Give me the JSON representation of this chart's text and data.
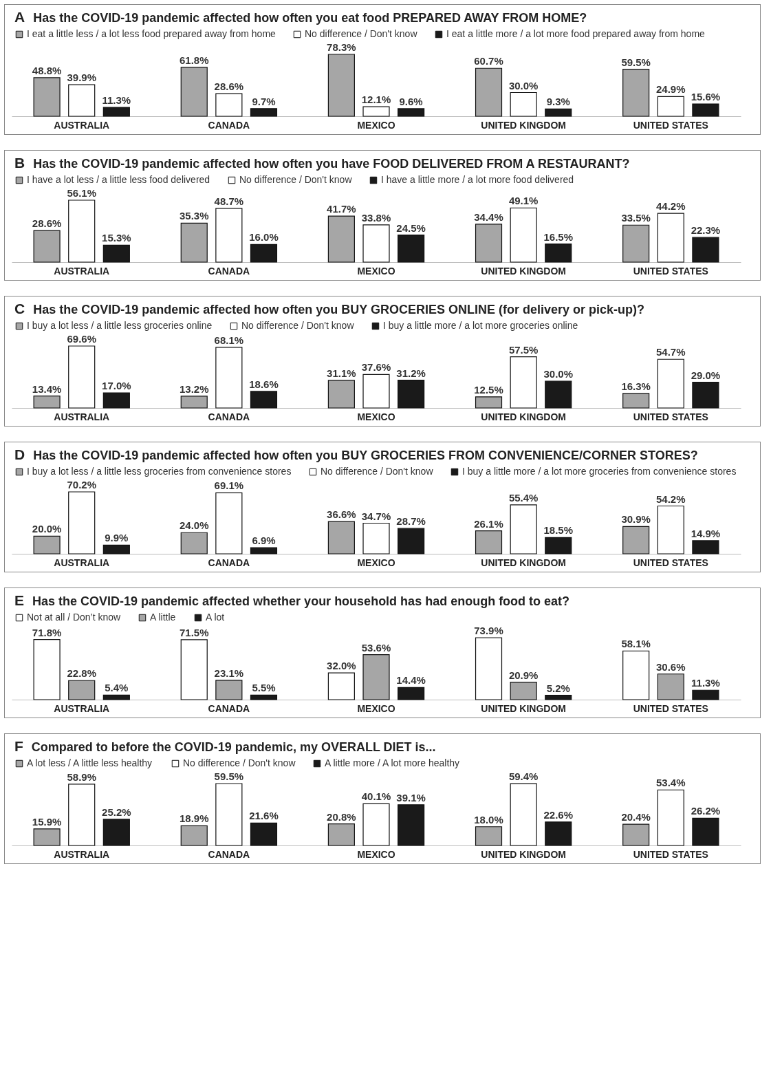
{
  "chart_data": [
    {
      "type": "bar",
      "title": "Has the COVID-19 pandemic affected how often you eat food PREPARED AWAY FROM HOME?",
      "annotations": [
        "A"
      ],
      "legend": "top",
      "categories": [
        "AUSTRALIA",
        "CANADA",
        "MEXICO",
        "UNITED KINGDOM",
        "UNITED STATES"
      ],
      "series": [
        {
          "name": "I eat a little less / a lot less food prepared away from home",
          "color": "#a6a6a6",
          "values": [
            48.8,
            61.8,
            78.3,
            60.7,
            59.5
          ],
          "value_labels": [
            "48.8%",
            "61.8%",
            "78.3%",
            "60.7%",
            "59.5%"
          ]
        },
        {
          "name": "No difference / Don't know",
          "color": "#ffffff",
          "values": [
            39.9,
            28.6,
            12.1,
            30.0,
            24.9
          ],
          "value_labels": [
            "39.9%",
            "28.6%",
            "12.1%",
            "30.0%",
            "24.9%"
          ]
        },
        {
          "name": "I eat a little more / a lot more food prepared away from home",
          "color": "#1a1a1a",
          "values": [
            11.3,
            9.7,
            9.6,
            9.3,
            15.6
          ],
          "value_labels": [
            "11.3%",
            "9.7%",
            "9.6%",
            "9.3%",
            "15.6%"
          ]
        }
      ]
    },
    {
      "type": "bar",
      "title": "Has the COVID-19 pandemic affected how often you have FOOD DELIVERED FROM A RESTAURANT?",
      "annotations": [
        "B"
      ],
      "legend": "top",
      "categories": [
        "AUSTRALIA",
        "CANADA",
        "MEXICO",
        "UNITED KINGDOM",
        "UNITED STATES"
      ],
      "series": [
        {
          "name": "I have a lot less / a little less food delivered",
          "color": "#a6a6a6",
          "values": [
            28.6,
            35.3,
            41.7,
            34.4,
            33.5
          ],
          "value_labels": [
            "28.6%",
            "35.3%",
            "41.7%",
            "34.4%",
            "33.5%"
          ]
        },
        {
          "name": "No difference / Don't know",
          "color": "#ffffff",
          "values": [
            56.1,
            48.7,
            33.8,
            49.1,
            44.2
          ],
          "value_labels": [
            "56.1%",
            "48.7%",
            "33.8%",
            "49.1%",
            "44.2%"
          ]
        },
        {
          "name": "I have a little more / a lot more food delivered",
          "color": "#1a1a1a",
          "values": [
            15.3,
            16.0,
            24.5,
            16.5,
            22.3
          ],
          "value_labels": [
            "15.3%",
            "16.0%",
            "24.5%",
            "16.5%",
            "22.3%"
          ]
        }
      ]
    },
    {
      "type": "bar",
      "title": "Has the COVID-19 pandemic affected how often you BUY GROCERIES ONLINE (for delivery or pick-up)?",
      "annotations": [
        "C"
      ],
      "legend": "top",
      "categories": [
        "AUSTRALIA",
        "CANADA",
        "MEXICO",
        "UNITED KINGDOM",
        "UNITED STATES"
      ],
      "series": [
        {
          "name": "I buy a lot less / a little less groceries online",
          "color": "#a6a6a6",
          "values": [
            13.4,
            13.2,
            31.1,
            12.5,
            16.3
          ],
          "value_labels": [
            "13.4%",
            "13.2%",
            "31.1%",
            "12.5%",
            "16.3%"
          ]
        },
        {
          "name": "No difference / Don't know",
          "color": "#ffffff",
          "values": [
            69.6,
            68.1,
            37.6,
            57.5,
            54.7
          ],
          "value_labels": [
            "69.6%",
            "68.1%",
            "37.6%",
            "57.5%",
            "54.7%"
          ]
        },
        {
          "name": "I buy a little more / a lot more groceries online",
          "color": "#1a1a1a",
          "values": [
            17.0,
            18.6,
            31.2,
            30.0,
            29.0
          ],
          "value_labels": [
            "17.0%",
            "18.6%",
            "31.2%",
            "30.0%",
            "29.0%"
          ]
        }
      ]
    },
    {
      "type": "bar",
      "title": "Has the COVID-19 pandemic affected how often you BUY GROCERIES FROM CONVENIENCE/CORNER STORES?",
      "annotations": [
        "D"
      ],
      "legend": "top",
      "categories": [
        "AUSTRALIA",
        "CANADA",
        "MEXICO",
        "UNITED KINGDOM",
        "UNITED STATES"
      ],
      "series": [
        {
          "name": "I buy a lot less / a little less groceries from convenience stores",
          "color": "#a6a6a6",
          "values": [
            20.0,
            24.0,
            36.6,
            26.1,
            30.9
          ],
          "value_labels": [
            "20.0%",
            "24.0%",
            "36.6%",
            "26.1%",
            "30.9%"
          ]
        },
        {
          "name": "No difference / Don't know",
          "color": "#ffffff",
          "values": [
            70.2,
            69.1,
            34.7,
            55.4,
            54.2
          ],
          "value_labels": [
            "70.2%",
            "69.1%",
            "34.7%",
            "55.4%",
            "54.2%"
          ]
        },
        {
          "name": "I buy a little more / a lot more groceries from convenience stores",
          "color": "#1a1a1a",
          "values": [
            9.9,
            6.9,
            28.7,
            18.5,
            14.9
          ],
          "value_labels": [
            "9.9%",
            "6.9%",
            "28.7%",
            "18.5%",
            "14.9%"
          ]
        }
      ]
    },
    {
      "type": "bar",
      "title": "Has the COVID-19 pandemic affected whether your household has had enough food to eat?",
      "annotations": [
        "E"
      ],
      "legend": "top",
      "categories": [
        "AUSTRALIA",
        "CANADA",
        "MEXICO",
        "UNITED KINGDOM",
        "UNITED STATES"
      ],
      "series": [
        {
          "name": "Not at all / Don’t know",
          "color": "#ffffff",
          "values": [
            71.8,
            71.5,
            32.0,
            73.9,
            58.1
          ],
          "value_labels": [
            "71.8%",
            "71.5%",
            "32.0%",
            "73.9%",
            "58.1%"
          ]
        },
        {
          "name": "A little",
          "color": "#a6a6a6",
          "values": [
            22.8,
            23.1,
            53.6,
            20.9,
            30.6
          ],
          "value_labels": [
            "22.8%",
            "23.1%",
            "53.6%",
            "20.9%",
            "30.6%"
          ]
        },
        {
          "name": "A lot",
          "color": "#1a1a1a",
          "values": [
            5.4,
            5.5,
            14.4,
            5.2,
            11.3
          ],
          "value_labels": [
            "5.4%",
            "5.5%",
            "14.4%",
            "5.2%",
            "11.3%"
          ]
        }
      ]
    },
    {
      "type": "bar",
      "title": "Compared to before the COVID-19 pandemic, my OVERALL DIET is...",
      "annotations": [
        "F"
      ],
      "legend": "top",
      "categories": [
        "AUSTRALIA",
        "CANADA",
        "MEXICO",
        "UNITED KINGDOM",
        "UNITED STATES"
      ],
      "series": [
        {
          "name": "A lot less / A little less healthy",
          "color": "#a6a6a6",
          "values": [
            15.9,
            18.9,
            20.8,
            18.0,
            20.4
          ],
          "value_labels": [
            "15.9%",
            "18.9%",
            "20.8%",
            "18.0%",
            "20.4%"
          ]
        },
        {
          "name": "No difference / Don't know",
          "color": "#ffffff",
          "values": [
            58.9,
            59.5,
            40.1,
            59.4,
            53.4
          ],
          "value_labels": [
            "58.9%",
            "59.5%",
            "40.1%",
            "59.4%",
            "53.4%"
          ]
        },
        {
          "name": "A little more / A lot more healthy",
          "color": "#1a1a1a",
          "values": [
            25.2,
            21.6,
            39.1,
            22.6,
            26.2
          ],
          "value_labels": [
            "25.2%",
            "21.6%",
            "39.1%",
            "22.6%",
            "26.2%"
          ]
        }
      ]
    }
  ]
}
